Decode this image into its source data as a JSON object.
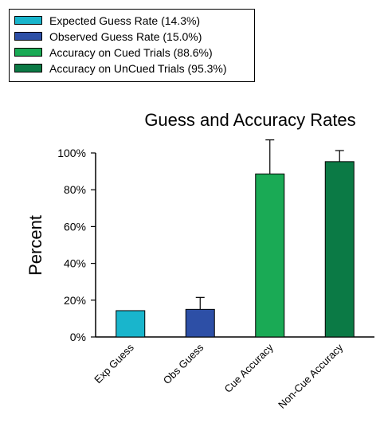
{
  "chart_data": {
    "type": "bar",
    "title": "Guess and Accuracy Rates",
    "xlabel": "",
    "ylabel": "Percent",
    "ylim": [
      0,
      100
    ],
    "yticks": [
      "0%",
      "20%",
      "40%",
      "60%",
      "80%",
      "100%"
    ],
    "ytick_values": [
      0,
      20,
      40,
      60,
      80,
      100
    ],
    "categories": [
      "Exp Guess",
      "Obs Guess",
      "Cue Accuracy",
      "Non-Cue Accuracy"
    ],
    "values": [
      14.3,
      15.0,
      88.6,
      95.3
    ],
    "error_upper": [
      0,
      6.5,
      18.5,
      6
    ],
    "bar_colors": [
      "#19b5cc",
      "#2d4fa6",
      "#1aaa55",
      "#0b7a45"
    ],
    "legend_placement": "top-left",
    "grid": false,
    "legend": [
      {
        "label": "Expected Guess Rate (14.3%)",
        "color": "#19b5cc"
      },
      {
        "label": "Observed Guess Rate (15.0%)",
        "color": "#2d4fa6"
      },
      {
        "label": "Accuracy on Cued Trials (88.6%)",
        "color": "#1aaa55"
      },
      {
        "label": "Accuracy on UnCued Trials (95.3%)",
        "color": "#0b7a45"
      }
    ]
  }
}
